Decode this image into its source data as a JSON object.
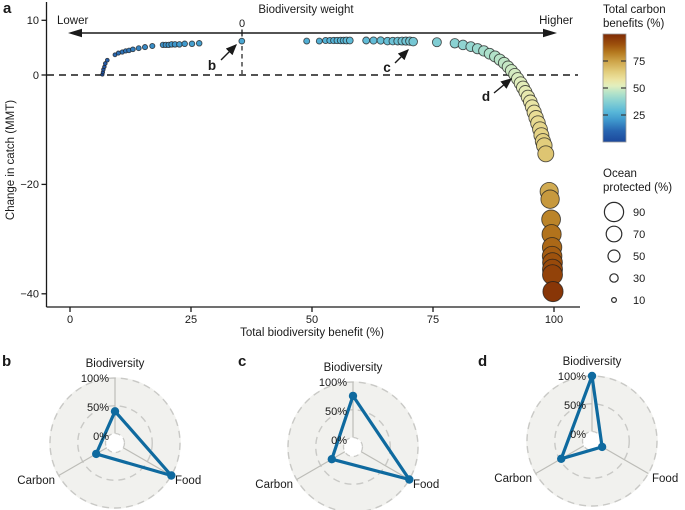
{
  "panels": {
    "a_label": "a",
    "b_label": "b",
    "c_label": "c",
    "d_label": "d"
  },
  "panel_a": {
    "weight_arrow": {
      "title": "Biodiversity weight",
      "left_label": "Lower",
      "right_label": "Higher",
      "zero_label": "0"
    },
    "x_axis": {
      "label": "Total biodiversity benefit (%)",
      "ticks": [
        0,
        25,
        50,
        75,
        100
      ],
      "range": [
        0,
        100
      ]
    },
    "y_axis": {
      "label": "Change in catch (MMT)",
      "ticks": [
        10,
        0,
        -20,
        -40
      ],
      "range": [
        -42,
        11
      ]
    },
    "annotations": [
      {
        "label": "b",
        "bio": 35.5,
        "catch": 6.2
      },
      {
        "label": "c",
        "bio": 70.9,
        "catch": 6.1
      },
      {
        "label": "d",
        "bio": 91.9,
        "catch": 0.1
      }
    ]
  },
  "color_legend": {
    "title_lines": [
      "Total carbon",
      "benefits (%)"
    ],
    "ticks": [
      75,
      50,
      25
    ],
    "range": [
      0,
      100
    ]
  },
  "size_legend": {
    "title_lines": [
      "Ocean",
      "protected (%)"
    ],
    "entries": [
      90,
      70,
      50,
      30,
      10
    ]
  },
  "colormap": {
    "stops": [
      {
        "value": 0,
        "color": "#1c489c"
      },
      {
        "value": 10,
        "color": "#2764b0"
      },
      {
        "value": 20,
        "color": "#3e97cc"
      },
      {
        "value": 28,
        "color": "#58b7d8"
      },
      {
        "value": 38,
        "color": "#8ad2d2"
      },
      {
        "value": 46,
        "color": "#b8e4c8"
      },
      {
        "value": 52,
        "color": "#e2efbe"
      },
      {
        "value": 58,
        "color": "#ece3a0"
      },
      {
        "value": 65,
        "color": "#e2cd7c"
      },
      {
        "value": 75,
        "color": "#cda348"
      },
      {
        "value": 83,
        "color": "#b5791f"
      },
      {
        "value": 90,
        "color": "#9e520d"
      },
      {
        "value": 100,
        "color": "#7f2a04"
      }
    ]
  },
  "radar_style": {
    "line_color": "#0f6a9f",
    "ring_color": "#c9c9c6",
    "spoke_color": "#bdbdb8",
    "fill_color": "#f1f1ee"
  },
  "chart_data": [
    {
      "type": "scatter",
      "xlabel": "Total biodiversity benefit (%)",
      "ylabel": "Change in catch (MMT)",
      "xlim": [
        0,
        105
      ],
      "ylim": [
        -42,
        11
      ],
      "color_variable": "Total carbon benefits (%)",
      "size_variable": "Ocean protected (%)",
      "columns": [
        "biodiversity_pct",
        "catch_change_mmt",
        "carbon_pct",
        "ocean_protected_pct"
      ],
      "rows": [
        [
          6.7,
          0.1,
          3,
          2
        ],
        [
          6.8,
          0.5,
          4,
          2
        ],
        [
          6.9,
          1.0,
          5,
          3
        ],
        [
          7.1,
          1.5,
          6,
          3
        ],
        [
          7.3,
          2.1,
          7,
          4
        ],
        [
          7.7,
          2.7,
          9,
          5
        ],
        [
          9.3,
          3.7,
          11,
          6
        ],
        [
          10.0,
          4.0,
          12,
          7
        ],
        [
          10.8,
          4.2,
          13,
          8
        ],
        [
          11.5,
          4.4,
          13,
          8
        ],
        [
          12.2,
          4.5,
          14,
          9
        ],
        [
          13.0,
          4.7,
          15,
          10
        ],
        [
          14.2,
          4.9,
          16,
          11
        ],
        [
          15.5,
          5.1,
          17,
          12
        ],
        [
          17.0,
          5.3,
          18,
          12
        ],
        [
          19.2,
          5.5,
          19,
          13
        ],
        [
          19.8,
          5.5,
          19,
          13
        ],
        [
          20.4,
          5.5,
          20,
          13
        ],
        [
          21.0,
          5.6,
          20,
          14
        ],
        [
          21.7,
          5.6,
          20,
          14
        ],
        [
          22.6,
          5.6,
          21,
          14
        ],
        [
          23.7,
          5.7,
          21,
          15
        ],
        [
          25.2,
          5.7,
          22,
          15
        ],
        [
          26.7,
          5.8,
          22,
          15
        ],
        [
          35.5,
          6.2,
          24,
          16
        ],
        [
          48.9,
          6.2,
          26,
          17
        ],
        [
          51.5,
          6.2,
          26,
          17
        ],
        [
          52.8,
          6.3,
          27,
          18
        ],
        [
          53.7,
          6.3,
          27,
          18
        ],
        [
          54.5,
          6.3,
          27,
          19
        ],
        [
          55.2,
          6.3,
          28,
          19
        ],
        [
          55.9,
          6.3,
          28,
          20
        ],
        [
          56.5,
          6.3,
          28,
          20
        ],
        [
          57.1,
          6.3,
          29,
          21
        ],
        [
          57.8,
          6.3,
          29,
          21
        ],
        [
          61.2,
          6.3,
          30,
          22
        ],
        [
          62.7,
          6.3,
          30,
          23
        ],
        [
          64.2,
          6.3,
          31,
          24
        ],
        [
          65.6,
          6.2,
          31,
          25
        ],
        [
          66.7,
          6.2,
          32,
          26
        ],
        [
          67.7,
          6.2,
          32,
          27
        ],
        [
          68.6,
          6.2,
          33,
          28
        ],
        [
          69.4,
          6.2,
          33,
          29
        ],
        [
          70.2,
          6.2,
          34,
          30
        ],
        [
          70.9,
          6.1,
          34,
          31
        ],
        [
          75.8,
          6.0,
          36,
          33
        ],
        [
          79.5,
          5.8,
          38,
          35
        ],
        [
          81.2,
          5.5,
          39,
          37
        ],
        [
          82.8,
          5.2,
          40,
          38
        ],
        [
          84.2,
          4.8,
          41,
          40
        ],
        [
          85.5,
          4.4,
          43,
          41
        ],
        [
          86.7,
          3.9,
          44,
          43
        ],
        [
          87.8,
          3.4,
          45,
          44
        ],
        [
          88.8,
          2.8,
          46,
          46
        ],
        [
          89.7,
          2.2,
          47,
          47
        ],
        [
          90.5,
          1.5,
          48,
          48
        ],
        [
          91.2,
          0.8,
          49,
          50
        ],
        [
          91.9,
          0.1,
          50,
          51
        ],
        [
          92.5,
          -0.7,
          51,
          52
        ],
        [
          93.1,
          -1.5,
          52,
          54
        ],
        [
          93.6,
          -2.3,
          53,
          55
        ],
        [
          94.1,
          -3.1,
          54,
          56
        ],
        [
          94.6,
          -4.0,
          55,
          58
        ],
        [
          95.1,
          -4.9,
          56,
          59
        ],
        [
          95.5,
          -5.8,
          57,
          60
        ],
        [
          95.9,
          -6.8,
          58,
          62
        ],
        [
          96.3,
          -7.8,
          60,
          63
        ],
        [
          96.7,
          -8.8,
          61,
          64
        ],
        [
          97.1,
          -9.9,
          62,
          66
        ],
        [
          97.4,
          -11.0,
          63,
          67
        ],
        [
          97.7,
          -12.1,
          64,
          68
        ],
        [
          98.0,
          -12.9,
          65,
          70
        ],
        [
          98.3,
          -14.4,
          67,
          72
        ],
        [
          99.0,
          -21.3,
          73,
          84
        ],
        [
          99.2,
          -22.7,
          77,
          86
        ],
        [
          99.4,
          -26.4,
          81,
          88
        ],
        [
          99.5,
          -29.1,
          84,
          90
        ],
        [
          99.6,
          -31.5,
          86,
          91
        ],
        [
          99.6,
          -33.1,
          88,
          92
        ],
        [
          99.7,
          -34.3,
          90,
          93
        ],
        [
          99.7,
          -35.5,
          92,
          94
        ],
        [
          99.7,
          -36.5,
          94,
          95
        ],
        [
          99.8,
          -39.6,
          97,
          96
        ]
      ]
    },
    {
      "type": "radar",
      "panel": "b",
      "axes": [
        "Biodiversity",
        "Carbon",
        "Food"
      ],
      "ring_labels": [
        "100%",
        "50%",
        "0%"
      ],
      "values": [
        40,
        22,
        100
      ],
      "rmax": 100
    },
    {
      "type": "radar",
      "panel": "c",
      "axes": [
        "Biodiversity",
        "Carbon",
        "Food"
      ],
      "ring_labels": [
        "100%",
        "50%",
        "0%"
      ],
      "values": [
        75,
        27,
        100
      ],
      "rmax": 100
    },
    {
      "type": "radar",
      "panel": "d",
      "axes": [
        "Biodiversity",
        "Carbon",
        "Food"
      ],
      "ring_labels": [
        "100%",
        "50%",
        "0%"
      ],
      "values": [
        100,
        47,
        4
      ],
      "rmax": 100
    }
  ]
}
